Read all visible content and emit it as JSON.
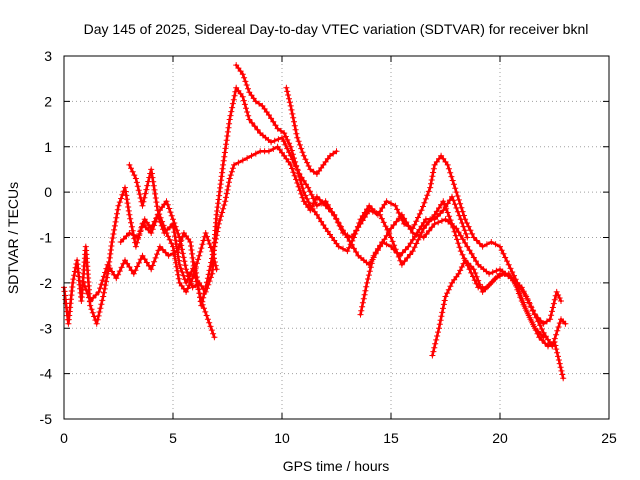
{
  "chart_data": {
    "type": "scatter",
    "title": "Day 145 of 2025, Sidereal Day-to-day VTEC variation (SDTVAR) for receiver bknl",
    "xlabel": "GPS time / hours",
    "ylabel": "SDTVAR / TECUs",
    "xlim": [
      0,
      25
    ],
    "ylim": [
      -5,
      3
    ],
    "x_ticks": [
      0,
      5,
      10,
      15,
      20,
      25
    ],
    "y_ticks": [
      -5,
      -4,
      -3,
      -2,
      -1,
      0,
      1,
      2,
      3
    ],
    "grid": true,
    "marker": "+",
    "color": "#ff0000",
    "series": [
      {
        "name": "track-1",
        "points": [
          [
            0.0,
            -2.1
          ],
          [
            0.2,
            -2.9
          ],
          [
            0.4,
            -2.0
          ],
          [
            0.6,
            -1.5
          ],
          [
            0.8,
            -2.4
          ],
          [
            1.0,
            -1.2
          ],
          [
            1.2,
            -2.5
          ],
          [
            1.5,
            -2.9
          ],
          [
            1.8,
            -2.3
          ],
          [
            2.0,
            -1.8
          ],
          [
            2.2,
            -1.1
          ],
          [
            2.5,
            -0.3
          ],
          [
            2.8,
            0.1
          ],
          [
            3.0,
            -0.5
          ],
          [
            3.3,
            -1.2
          ],
          [
            3.6,
            -0.7
          ],
          [
            4.0,
            -0.9
          ],
          [
            4.4,
            -0.4
          ],
          [
            4.7,
            -0.2
          ],
          [
            5.0,
            -0.6
          ],
          [
            5.3,
            -1.0
          ],
          [
            5.6,
            -1.7
          ],
          [
            5.9,
            -2.1
          ],
          [
            6.2,
            -2.0
          ],
          [
            6.5,
            -2.2
          ],
          [
            6.8,
            -1.8
          ],
          [
            7.0,
            -0.5
          ],
          [
            7.3,
            0.6
          ],
          [
            7.6,
            1.6
          ],
          [
            7.9,
            2.3
          ],
          [
            8.2,
            2.1
          ],
          [
            8.5,
            1.6
          ],
          [
            9.0,
            1.3
          ],
          [
            9.5,
            1.1
          ],
          [
            10.0,
            1.2
          ],
          [
            10.4,
            0.8
          ],
          [
            10.8,
            0.4
          ],
          [
            11.2,
            0.1
          ],
          [
            11.6,
            -0.3
          ],
          [
            12.0,
            -0.2
          ],
          [
            12.5,
            -0.6
          ],
          [
            13.0,
            -1.0
          ],
          [
            13.5,
            -1.4
          ],
          [
            14.0,
            -1.6
          ],
          [
            14.5,
            -1.2
          ],
          [
            15.0,
            -0.8
          ],
          [
            15.5,
            -0.5
          ],
          [
            16.0,
            -0.9
          ],
          [
            16.5,
            -1.0
          ],
          [
            17.0,
            -0.7
          ],
          [
            17.5,
            -0.6
          ],
          [
            18.0,
            -0.8
          ],
          [
            18.5,
            -1.2
          ],
          [
            19.0,
            -1.6
          ],
          [
            19.5,
            -1.8
          ],
          [
            20.0,
            -1.7
          ],
          [
            20.5,
            -1.9
          ],
          [
            21.0,
            -2.1
          ],
          [
            21.5,
            -2.6
          ],
          [
            22.0,
            -3.1
          ],
          [
            22.4,
            -3.4
          ],
          [
            22.8,
            -2.8
          ],
          [
            23.0,
            -2.9
          ]
        ]
      },
      {
        "name": "track-2",
        "points": [
          [
            0.9,
            -2.0
          ],
          [
            1.2,
            -2.4
          ],
          [
            1.6,
            -2.2
          ],
          [
            2.0,
            -1.6
          ],
          [
            2.4,
            -1.9
          ],
          [
            2.8,
            -1.5
          ],
          [
            3.2,
            -1.8
          ],
          [
            3.6,
            -1.4
          ],
          [
            4.0,
            -1.7
          ],
          [
            4.4,
            -1.2
          ],
          [
            4.8,
            -1.4
          ],
          [
            5.2,
            -1.3
          ],
          [
            5.5,
            -0.9
          ],
          [
            5.8,
            -1.1
          ],
          [
            6.0,
            -1.8
          ],
          [
            6.3,
            -2.4
          ],
          [
            6.6,
            -2.8
          ],
          [
            6.9,
            -3.2
          ]
        ]
      },
      {
        "name": "track-3",
        "points": [
          [
            2.6,
            -1.1
          ],
          [
            3.0,
            -0.9
          ],
          [
            3.4,
            -1.0
          ],
          [
            3.7,
            -0.6
          ],
          [
            4.0,
            -0.8
          ],
          [
            4.3,
            -0.5
          ],
          [
            4.6,
            -0.9
          ],
          [
            5.0,
            -0.7
          ],
          [
            5.3,
            -1.6
          ],
          [
            5.6,
            -2.0
          ],
          [
            6.0,
            -1.6
          ],
          [
            6.3,
            -2.5
          ],
          [
            6.6,
            -1.9
          ],
          [
            6.9,
            -1.2
          ],
          [
            7.1,
            -0.7
          ],
          [
            7.4,
            -0.2
          ],
          [
            7.6,
            0.3
          ],
          [
            7.8,
            0.6
          ],
          [
            8.2,
            0.7
          ],
          [
            8.6,
            0.8
          ],
          [
            9.0,
            0.9
          ],
          [
            9.4,
            0.9
          ],
          [
            9.8,
            1.0
          ],
          [
            10.1,
            0.8
          ],
          [
            10.4,
            0.6
          ],
          [
            10.7,
            0.2
          ],
          [
            11.0,
            -0.2
          ],
          [
            11.3,
            -0.4
          ],
          [
            11.6,
            -0.1
          ],
          [
            12.0,
            -0.3
          ],
          [
            12.4,
            -0.5
          ],
          [
            12.8,
            -0.9
          ],
          [
            13.2,
            -1.0
          ],
          [
            13.6,
            -0.7
          ],
          [
            14.0,
            -0.4
          ],
          [
            14.5,
            -0.5
          ],
          [
            15.0,
            -1.0
          ],
          [
            15.5,
            -1.6
          ],
          [
            16.0,
            -1.3
          ],
          [
            16.5,
            -0.8
          ],
          [
            17.0,
            -0.5
          ],
          [
            17.4,
            -0.2
          ],
          [
            17.8,
            -0.7
          ],
          [
            18.2,
            -1.3
          ],
          [
            18.6,
            -1.7
          ],
          [
            19.0,
            -2.1
          ],
          [
            19.4,
            -2.1
          ],
          [
            19.8,
            -1.9
          ],
          [
            20.2,
            -1.8
          ],
          [
            20.6,
            -1.9
          ],
          [
            21.0,
            -2.4
          ],
          [
            21.4,
            -2.8
          ],
          [
            21.8,
            -3.2
          ],
          [
            22.2,
            -3.4
          ],
          [
            22.5,
            -3.3
          ],
          [
            22.7,
            -3.7
          ],
          [
            22.9,
            -4.1
          ]
        ]
      },
      {
        "name": "track-4",
        "points": [
          [
            7.9,
            2.8
          ],
          [
            8.2,
            2.6
          ],
          [
            8.5,
            2.2
          ],
          [
            8.8,
            2.0
          ],
          [
            9.1,
            1.9
          ],
          [
            9.4,
            1.7
          ],
          [
            9.8,
            1.4
          ],
          [
            10.1,
            1.3
          ],
          [
            10.4,
            1.0
          ],
          [
            10.7,
            0.5
          ],
          [
            11.0,
            0.0
          ],
          [
            11.3,
            -0.3
          ],
          [
            11.6,
            -0.5
          ],
          [
            12.0,
            -0.8
          ],
          [
            12.3,
            -1.0
          ],
          [
            12.6,
            -1.2
          ],
          [
            13.0,
            -1.3
          ],
          [
            13.3,
            -1.0
          ],
          [
            13.6,
            -0.6
          ],
          [
            14.0,
            -0.3
          ],
          [
            14.4,
            -0.5
          ],
          [
            14.8,
            -0.2
          ],
          [
            15.2,
            -0.3
          ],
          [
            15.6,
            -0.7
          ],
          [
            16.0,
            -0.8
          ],
          [
            16.4,
            -0.4
          ],
          [
            16.8,
            0.1
          ],
          [
            17.0,
            0.6
          ],
          [
            17.3,
            0.8
          ],
          [
            17.6,
            0.6
          ],
          [
            18.0,
            0.0
          ],
          [
            18.4,
            -0.6
          ],
          [
            18.8,
            -1.0
          ],
          [
            19.2,
            -1.2
          ],
          [
            19.6,
            -1.1
          ],
          [
            20.0,
            -1.2
          ],
          [
            20.4,
            -1.6
          ],
          [
            20.8,
            -2.0
          ],
          [
            21.2,
            -2.3
          ],
          [
            21.6,
            -2.7
          ],
          [
            22.0,
            -2.9
          ],
          [
            22.3,
            -2.8
          ],
          [
            22.6,
            -2.2
          ],
          [
            22.8,
            -2.4
          ]
        ]
      },
      {
        "name": "track-5",
        "points": [
          [
            10.2,
            2.3
          ],
          [
            10.4,
            1.9
          ],
          [
            10.7,
            1.2
          ],
          [
            11.0,
            0.8
          ],
          [
            11.3,
            0.5
          ],
          [
            11.6,
            0.4
          ],
          [
            11.9,
            0.6
          ],
          [
            12.2,
            0.8
          ],
          [
            12.5,
            0.9
          ]
        ]
      },
      {
        "name": "track-6",
        "points": [
          [
            13.6,
            -2.7
          ],
          [
            13.9,
            -2.0
          ],
          [
            14.2,
            -1.4
          ],
          [
            14.6,
            -1.1
          ],
          [
            15.0,
            -1.2
          ],
          [
            15.4,
            -1.4
          ],
          [
            15.8,
            -1.2
          ],
          [
            16.2,
            -0.9
          ],
          [
            16.6,
            -0.6
          ],
          [
            17.0,
            -0.6
          ],
          [
            17.4,
            -0.4
          ],
          [
            17.8,
            -0.1
          ],
          [
            18.2,
            -0.6
          ],
          [
            18.5,
            -1.0
          ]
        ]
      },
      {
        "name": "track-7",
        "points": [
          [
            16.9,
            -3.6
          ],
          [
            17.2,
            -3.0
          ],
          [
            17.5,
            -2.3
          ],
          [
            17.8,
            -2.0
          ],
          [
            18.1,
            -1.8
          ],
          [
            18.4,
            -1.5
          ],
          [
            18.8,
            -1.7
          ],
          [
            19.2,
            -2.2
          ],
          [
            19.6,
            -2.0
          ],
          [
            20.0,
            -1.8
          ],
          [
            20.4,
            -1.8
          ],
          [
            20.8,
            -2.1
          ],
          [
            21.2,
            -2.6
          ],
          [
            21.6,
            -3.0
          ],
          [
            22.0,
            -3.2
          ]
        ]
      },
      {
        "name": "track-8",
        "points": [
          [
            3.0,
            0.6
          ],
          [
            3.3,
            0.3
          ],
          [
            3.6,
            -0.3
          ],
          [
            4.0,
            0.5
          ],
          [
            4.3,
            -0.4
          ],
          [
            4.7,
            -0.9
          ],
          [
            5.0,
            -1.2
          ],
          [
            5.3,
            -2.0
          ],
          [
            5.6,
            -2.2
          ],
          [
            5.9,
            -1.9
          ],
          [
            6.2,
            -1.4
          ],
          [
            6.5,
            -0.9
          ],
          [
            6.8,
            -1.3
          ],
          [
            7.0,
            -1.7
          ]
        ]
      }
    ]
  }
}
